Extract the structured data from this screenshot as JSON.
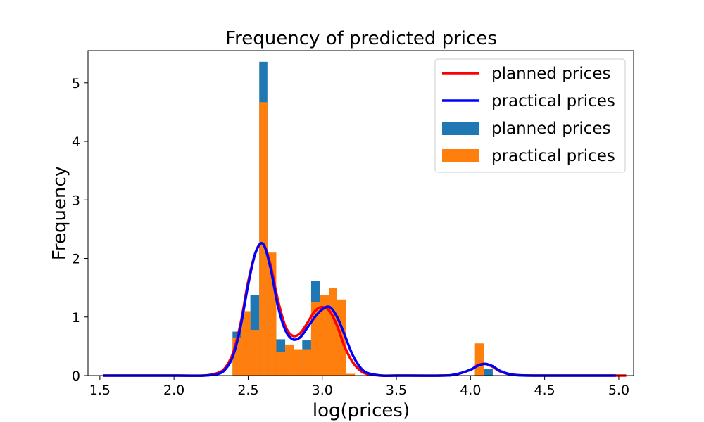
{
  "chart_data": {
    "type": "histogram",
    "title": "Frequency of predicted prices",
    "xlabel": "log(prices)",
    "ylabel": "Frequency",
    "xlim": [
      1.42,
      5.1
    ],
    "ylim": [
      0,
      5.55
    ],
    "xticks": [
      1.5,
      2.0,
      2.5,
      3.0,
      3.5,
      4.0,
      4.5,
      5.0
    ],
    "xtick_labels": [
      "1.5",
      "2.0",
      "2.5",
      "3.0",
      "3.5",
      "4.0",
      "4.5",
      "5.0"
    ],
    "yticks": [
      0,
      1,
      2,
      3,
      4,
      5
    ],
    "ytick_labels": [
      "0",
      "1",
      "2",
      "3",
      "4",
      "5"
    ],
    "grid": false,
    "legend_position": "upper-right",
    "legend": [
      {
        "label": "planned prices",
        "kind": "line",
        "color": "#ff0000"
      },
      {
        "label": "practical prices",
        "kind": "line",
        "color": "#0000ff"
      },
      {
        "label": "planned prices",
        "kind": "patch",
        "color": "#1f77b4"
      },
      {
        "label": "practical prices",
        "kind": "patch",
        "color": "#ff7f0e"
      }
    ],
    "histograms": [
      {
        "name": "planned prices",
        "color": "#1f77b4",
        "bins": [
          {
            "x0": 2.395,
            "x1": 2.455,
            "value": 0.75
          },
          {
            "x0": 2.455,
            "x1": 2.515,
            "value": 0.9
          },
          {
            "x0": 2.515,
            "x1": 2.575,
            "value": 1.38
          },
          {
            "x0": 2.575,
            "x1": 2.63,
            "value": 5.36
          },
          {
            "x0": 2.63,
            "x1": 2.69,
            "value": 1.35
          },
          {
            "x0": 2.69,
            "x1": 2.75,
            "value": 0.62
          },
          {
            "x0": 2.75,
            "x1": 2.81,
            "value": 0.45
          },
          {
            "x0": 2.81,
            "x1": 2.865,
            "value": 0.43
          },
          {
            "x0": 2.865,
            "x1": 2.925,
            "value": 0.6
          },
          {
            "x0": 2.925,
            "x1": 2.985,
            "value": 1.62
          },
          {
            "x0": 2.985,
            "x1": 3.045,
            "value": 1.1
          },
          {
            "x0": 3.045,
            "x1": 3.1,
            "value": 1.1
          },
          {
            "x0": 3.1,
            "x1": 3.16,
            "value": 0.0
          },
          {
            "x0": 4.03,
            "x1": 4.09,
            "value": 0.2
          },
          {
            "x0": 4.09,
            "x1": 4.15,
            "value": 0.12
          }
        ]
      },
      {
        "name": "practical prices",
        "color": "#ff7f0e",
        "bins": [
          {
            "x0": 2.395,
            "x1": 2.455,
            "value": 0.65
          },
          {
            "x0": 2.455,
            "x1": 2.515,
            "value": 1.1
          },
          {
            "x0": 2.515,
            "x1": 2.575,
            "value": 0.78
          },
          {
            "x0": 2.575,
            "x1": 2.63,
            "value": 4.67
          },
          {
            "x0": 2.63,
            "x1": 2.69,
            "value": 2.1
          },
          {
            "x0": 2.69,
            "x1": 2.75,
            "value": 0.4
          },
          {
            "x0": 2.75,
            "x1": 2.81,
            "value": 0.53
          },
          {
            "x0": 2.81,
            "x1": 2.865,
            "value": 0.45
          },
          {
            "x0": 2.865,
            "x1": 2.925,
            "value": 0.45
          },
          {
            "x0": 2.925,
            "x1": 2.985,
            "value": 1.25
          },
          {
            "x0": 2.985,
            "x1": 3.045,
            "value": 1.37
          },
          {
            "x0": 3.045,
            "x1": 3.1,
            "value": 1.5
          },
          {
            "x0": 3.1,
            "x1": 3.16,
            "value": 1.3
          },
          {
            "x0": 3.16,
            "x1": 3.22,
            "value": 0.03
          },
          {
            "x0": 4.03,
            "x1": 4.09,
            "value": 0.55
          }
        ]
      }
    ],
    "series": [
      {
        "name": "planned prices",
        "color": "#ff0000",
        "x": [
          1.52,
          2.0,
          2.2,
          2.3,
          2.35,
          2.4,
          2.45,
          2.5,
          2.55,
          2.6,
          2.65,
          2.7,
          2.75,
          2.8,
          2.85,
          2.9,
          2.95,
          3.0,
          3.05,
          3.1,
          3.15,
          3.2,
          3.25,
          3.3,
          3.4,
          3.5,
          3.8,
          3.9,
          4.0,
          4.05,
          4.1,
          4.15,
          4.2,
          4.3,
          4.5,
          5.05
        ],
        "y": [
          0,
          0,
          0.0,
          0.05,
          0.15,
          0.4,
          0.9,
          1.6,
          2.1,
          2.25,
          1.9,
          1.3,
          0.85,
          0.68,
          0.72,
          0.9,
          1.1,
          1.17,
          1.1,
          0.85,
          0.5,
          0.25,
          0.1,
          0.03,
          0,
          0,
          0,
          0.02,
          0.1,
          0.18,
          0.2,
          0.15,
          0.07,
          0.01,
          0,
          0
        ]
      },
      {
        "name": "practical prices",
        "color": "#0000ff",
        "x": [
          1.52,
          2.0,
          2.2,
          2.3,
          2.35,
          2.4,
          2.45,
          2.5,
          2.55,
          2.6,
          2.65,
          2.7,
          2.75,
          2.8,
          2.85,
          2.9,
          2.95,
          3.0,
          3.05,
          3.1,
          3.15,
          3.2,
          3.25,
          3.3,
          3.4,
          3.5,
          3.8,
          3.9,
          4.0,
          4.05,
          4.1,
          4.15,
          4.2,
          4.3,
          4.5,
          4.98
        ],
        "y": [
          0,
          0,
          0.0,
          0.03,
          0.12,
          0.35,
          0.85,
          1.55,
          2.1,
          2.25,
          1.85,
          1.2,
          0.78,
          0.62,
          0.65,
          0.82,
          1.0,
          1.13,
          1.17,
          1.0,
          0.7,
          0.38,
          0.16,
          0.05,
          0,
          0,
          0,
          0.02,
          0.1,
          0.17,
          0.2,
          0.16,
          0.08,
          0.01,
          0,
          0
        ]
      }
    ]
  }
}
